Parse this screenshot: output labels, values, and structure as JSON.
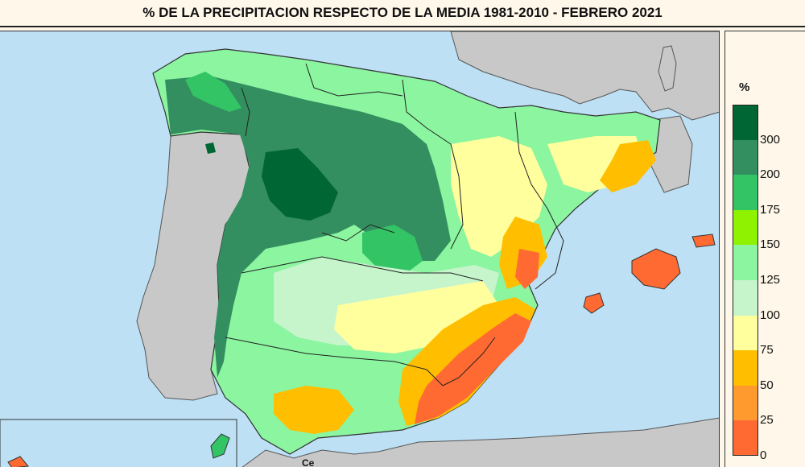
{
  "header": {
    "title": "% DE LA PRECIPITACION RESPECTO DE LA MEDIA 1981-2010 - FEBRERO  2021"
  },
  "legend": {
    "unit": "%",
    "classes": [
      {
        "label": "300",
        "color": "#006633"
      },
      {
        "label": "200",
        "color": "#338f5f"
      },
      {
        "label": "175",
        "color": "#33c466"
      },
      {
        "label": "150",
        "color": "#8ef200"
      },
      {
        "label": "125",
        "color": "#8bf5a0"
      },
      {
        "label": "100",
        "color": "#c6f5cc"
      },
      {
        "label": "75",
        "color": "#ffff9e"
      },
      {
        "label": "50",
        "color": "#ffbf00"
      },
      {
        "label": "25",
        "color": "#ff9a2e"
      },
      {
        "label": "0",
        "color": "#ff6a33"
      }
    ],
    "bottom_color": "#ff6633"
  },
  "map": {
    "sea_color": "#bde0f5",
    "land_other_color": "#c8c8c8",
    "ceuta_label": "Ce"
  }
}
